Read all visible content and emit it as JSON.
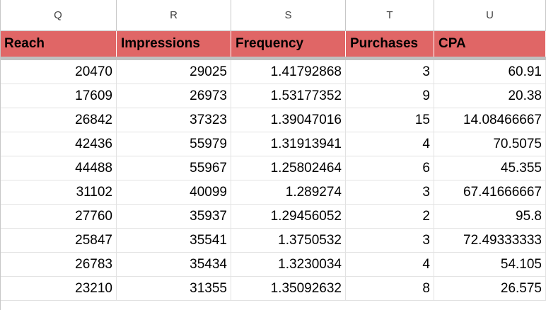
{
  "columns": {
    "letters": [
      "Q",
      "R",
      "S",
      "T",
      "U"
    ]
  },
  "headers": [
    "Reach",
    "Impressions",
    "Frequency",
    "Purchases",
    "CPA"
  ],
  "rows": [
    [
      "20470",
      "29025",
      "1.41792868",
      "3",
      "60.91"
    ],
    [
      "17609",
      "26973",
      "1.53177352",
      "9",
      "20.38"
    ],
    [
      "26842",
      "37323",
      "1.39047016",
      "15",
      "14.08466667"
    ],
    [
      "42436",
      "55979",
      "1.31913941",
      "4",
      "70.5075"
    ],
    [
      "44488",
      "55967",
      "1.25802464",
      "6",
      "45.355"
    ],
    [
      "31102",
      "40099",
      "1.289274",
      "3",
      "67.41666667"
    ],
    [
      "27760",
      "35937",
      "1.29456052",
      "2",
      "95.8"
    ],
    [
      "25847",
      "35541",
      "1.3750532",
      "3",
      "72.49333333"
    ],
    [
      "26783",
      "35434",
      "1.3230034",
      "4",
      "54.105"
    ],
    [
      "23210",
      "31355",
      "1.35092632",
      "8",
      "26.575"
    ]
  ],
  "colors": {
    "header_fill": "#e06666",
    "grid_line": "#e2e2e2",
    "header_border": "#c7c7c7"
  }
}
